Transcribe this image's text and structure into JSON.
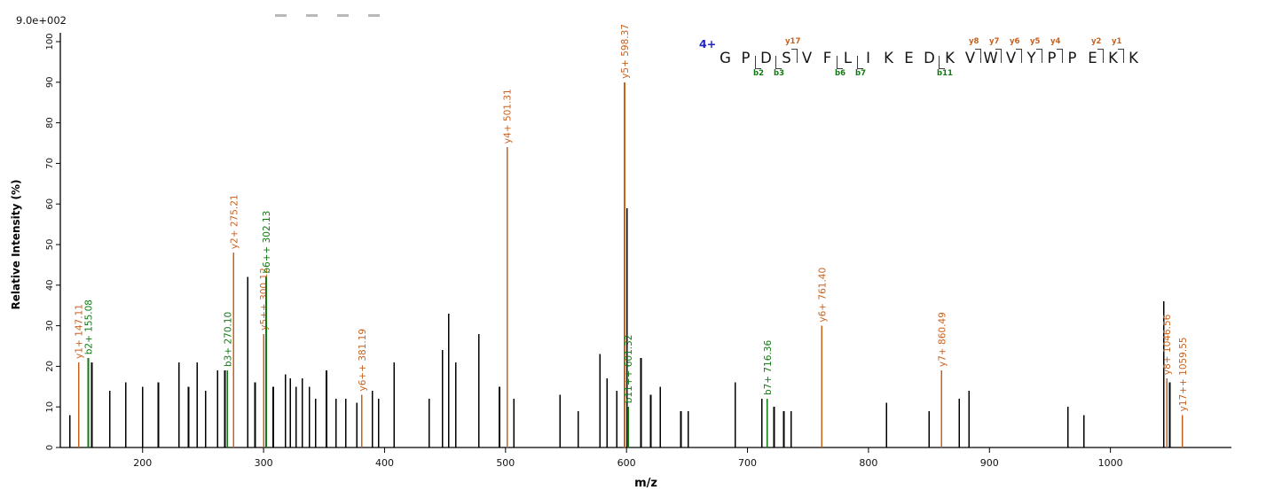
{
  "header": {
    "max_intensity": "9.0e+002"
  },
  "axes": {
    "y_label": "Relative  Intensity (%)",
    "x_label": "m/z",
    "y_ticks": [
      0,
      10,
      20,
      30,
      40,
      50,
      60,
      70,
      80,
      90,
      100
    ],
    "x_ticks": [
      200,
      300,
      400,
      500,
      600,
      700,
      800,
      900,
      1000
    ],
    "x_min": 132,
    "x_max": 1100,
    "y_min": 0,
    "y_max": 100
  },
  "colors": {
    "y_ion": "#c8611e",
    "b_ion": "#107a10",
    "peak": "#000000",
    "charge": "#2222cc",
    "axis": "#000000"
  },
  "chart_data": {
    "type": "ms2-spectrum-bar",
    "title": "",
    "xlabel": "m/z",
    "ylabel": "Relative  Intensity (%)",
    "xlim": [
      132,
      1100
    ],
    "ylim": [
      0,
      100
    ],
    "base_peak_intensity": "9.0e+002",
    "annotated_peaks": [
      {
        "mz": 147.11,
        "intensity": 21,
        "label": "y1+ 147.11",
        "ion": "y"
      },
      {
        "mz": 155.08,
        "intensity": 22,
        "label": "b2+ 155.08",
        "ion": "b"
      },
      {
        "mz": 270.1,
        "intensity": 19,
        "label": "b3+ 270.10",
        "ion": "b"
      },
      {
        "mz": 275.21,
        "intensity": 48,
        "label": "y2+ 275.21",
        "ion": "y"
      },
      {
        "mz": 300.12,
        "intensity": 28,
        "label": "y5++ 300.12",
        "ion": "y"
      },
      {
        "mz": 302.13,
        "intensity": 42,
        "label": "b6++ 302.13",
        "ion": "b"
      },
      {
        "mz": 381.19,
        "intensity": 13,
        "label": "y6++ 381.19",
        "ion": "y"
      },
      {
        "mz": 501.31,
        "intensity": 74,
        "label": "y4+ 501.31",
        "ion": "y"
      },
      {
        "mz": 598.37,
        "intensity": 90,
        "label": "y5+ 598.37",
        "ion": "y"
      },
      {
        "mz": 601.32,
        "intensity": 10,
        "label": "b11++ 601.32",
        "ion": "b"
      },
      {
        "mz": 716.36,
        "intensity": 12,
        "label": "b7+ 716.36",
        "ion": "b"
      },
      {
        "mz": 761.4,
        "intensity": 30,
        "label": "y6+ 761.40",
        "ion": "y"
      },
      {
        "mz": 860.49,
        "intensity": 19,
        "label": "y7+ 860.49",
        "ion": "y"
      },
      {
        "mz": 1046.56,
        "intensity": 17,
        "label": "y8+ 1046.56",
        "ion": "y"
      },
      {
        "mz": 1059.55,
        "intensity": 8,
        "label": "y17++ 1059.55",
        "ion": "y"
      }
    ],
    "peaks": [
      [
        140,
        8
      ],
      [
        158,
        21
      ],
      [
        173,
        14
      ],
      [
        186,
        16
      ],
      [
        200,
        15
      ],
      [
        213,
        16
      ],
      [
        230,
        21
      ],
      [
        238,
        15
      ],
      [
        245,
        21
      ],
      [
        252,
        14
      ],
      [
        262,
        19
      ],
      [
        268,
        19
      ],
      [
        287,
        42
      ],
      [
        293,
        16
      ],
      [
        308,
        15
      ],
      [
        318,
        18
      ],
      [
        322,
        17
      ],
      [
        327,
        15
      ],
      [
        332,
        17
      ],
      [
        338,
        15
      ],
      [
        343,
        12
      ],
      [
        352,
        19
      ],
      [
        360,
        12
      ],
      [
        368,
        12
      ],
      [
        377,
        11
      ],
      [
        390,
        14
      ],
      [
        395,
        12
      ],
      [
        408,
        21
      ],
      [
        437,
        12
      ],
      [
        448,
        24
      ],
      [
        453,
        33
      ],
      [
        459,
        21
      ],
      [
        478,
        28
      ],
      [
        495,
        15
      ],
      [
        507,
        12
      ],
      [
        545,
        13
      ],
      [
        560,
        9
      ],
      [
        578,
        23
      ],
      [
        584,
        17
      ],
      [
        592,
        14
      ],
      [
        600.3,
        59
      ],
      [
        612,
        22
      ],
      [
        620,
        13
      ],
      [
        628,
        15
      ],
      [
        645,
        9
      ],
      [
        651,
        9
      ],
      [
        690,
        16
      ],
      [
        712,
        12
      ],
      [
        722,
        10
      ],
      [
        730,
        9
      ],
      [
        736,
        9
      ],
      [
        815,
        11
      ],
      [
        850,
        9
      ],
      [
        875,
        12
      ],
      [
        883,
        14
      ],
      [
        965,
        10
      ],
      [
        978,
        8
      ],
      [
        1044,
        36
      ],
      [
        1049,
        16
      ]
    ]
  },
  "peptide": {
    "charge": "4+",
    "sequence": [
      "G",
      "P",
      "D",
      "S",
      "V",
      "F",
      "L",
      "I",
      "K",
      "E",
      "D",
      "K",
      "V",
      "W",
      "V",
      "Y",
      "P",
      "P",
      "E",
      "K",
      "K"
    ],
    "y_ions": [
      {
        "name": "y17",
        "after": 4
      },
      {
        "name": "y8",
        "after": 13
      },
      {
        "name": "y7",
        "after": 14
      },
      {
        "name": "y6",
        "after": 15
      },
      {
        "name": "y5",
        "after": 16
      },
      {
        "name": "y4",
        "after": 17
      },
      {
        "name": "y2",
        "after": 19
      },
      {
        "name": "y1",
        "after": 20
      }
    ],
    "b_ions": [
      {
        "name": "b2",
        "after": 2
      },
      {
        "name": "b3",
        "after": 3
      },
      {
        "name": "b6",
        "after": 6
      },
      {
        "name": "b7",
        "after": 7
      },
      {
        "name": "b11",
        "after": 11
      }
    ]
  }
}
